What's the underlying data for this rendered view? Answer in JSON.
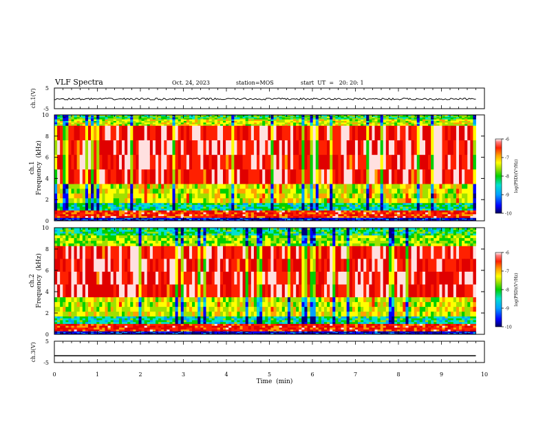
{
  "header": {
    "title": "VLF Spectra",
    "date": "Oct. 24, 2023",
    "station": "station=MOS",
    "start": "start  UT  =   20: 20: 1"
  },
  "chart_data": [
    {
      "type": "line",
      "name": "ch1-voltage",
      "ylabel": "ch.1(V)",
      "ylim": [
        -5,
        5
      ],
      "yticks": [
        "5",
        "-5"
      ],
      "x": [
        0,
        9.8
      ],
      "y": [
        -0.3,
        -0.3
      ],
      "note": "noisy trace around -0.3 V"
    },
    {
      "type": "heatmap",
      "name": "ch1-spectrogram",
      "ylabel": [
        "ch.1",
        "Frequency  (kHz)"
      ],
      "ylim": [
        0,
        10
      ],
      "yticks": [
        "0",
        "2",
        "4",
        "6",
        "8",
        "10"
      ],
      "xlim": [
        0,
        9.8
      ],
      "colorbar": {
        "ticks": [
          "-6",
          "-7",
          "-8",
          "-9",
          "-10"
        ],
        "label": "log(PSD)(V²/Hz)",
        "range": [
          -10,
          -6
        ]
      },
      "bands": [
        {
          "from": 0,
          "to": 0.3,
          "value": -9.6
        },
        {
          "from": 0.3,
          "to": 1.0,
          "value": -6.8
        },
        {
          "from": 1.0,
          "to": 1.7,
          "value": -8.6
        },
        {
          "from": 1.7,
          "to": 3.5,
          "value": -7.8
        },
        {
          "from": 3.5,
          "to": 9.0,
          "value": -6.6
        },
        {
          "from": 9.0,
          "to": 9.6,
          "value": -7.8
        },
        {
          "from": 9.6,
          "to": 10,
          "value": -8.3
        }
      ]
    },
    {
      "type": "heatmap",
      "name": "ch2-spectrogram",
      "ylabel": [
        "ch.2",
        "Frequency  (kHz)"
      ],
      "ylim": [
        0,
        10
      ],
      "yticks": [
        "0",
        "2",
        "4",
        "6",
        "8",
        "10"
      ],
      "xlim": [
        0,
        9.8
      ],
      "colorbar": {
        "ticks": [
          "-6",
          "-7",
          "-8",
          "-9",
          "-10"
        ],
        "label": "log(PSD)(V²/Hz)",
        "range": [
          -10,
          -6
        ]
      },
      "bands": [
        {
          "from": 0,
          "to": 0.3,
          "value": -9.6
        },
        {
          "from": 0.3,
          "to": 1.0,
          "value": -6.8
        },
        {
          "from": 1.0,
          "to": 1.7,
          "value": -8.6
        },
        {
          "from": 1.7,
          "to": 3.5,
          "value": -7.8
        },
        {
          "from": 3.5,
          "to": 8.3,
          "value": -6.6
        },
        {
          "from": 8.3,
          "to": 9.3,
          "value": -8.0
        },
        {
          "from": 9.3,
          "to": 10,
          "value": -8.5
        }
      ]
    },
    {
      "type": "line",
      "name": "ch3-voltage",
      "ylabel": "ch.3(V)",
      "ylim": [
        -5,
        5
      ],
      "yticks": [
        "5",
        "-5"
      ],
      "x": [
        0,
        9.8
      ],
      "y": [
        -1.8,
        -1.8
      ]
    }
  ],
  "xaxis": {
    "label": "Time  (min)",
    "xlim": [
      0,
      10
    ],
    "ticks": [
      "0",
      "1",
      "2",
      "3",
      "4",
      "5",
      "6",
      "7",
      "8",
      "9",
      "10"
    ]
  },
  "colors": {
    "colormap": [
      "#000080",
      "#0000ff",
      "#00a0ff",
      "#00e0d0",
      "#00d000",
      "#a0e000",
      "#ffff00",
      "#ffa000",
      "#ff2000",
      "#e00000",
      "#ffe0e0"
    ]
  }
}
